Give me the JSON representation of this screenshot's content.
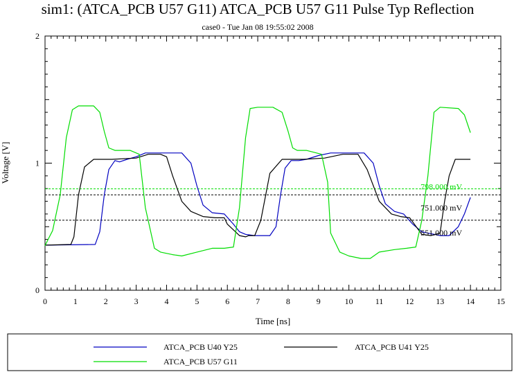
{
  "chart_data": {
    "type": "line",
    "title": "sim1: (ATCA_PCB U57 G11) ATCA_PCB U57 G11 Pulse Typ Reflection",
    "subtitle": "case0 - Tue Jan 08 19:55:02 2008",
    "xlabel": "Time [ns]",
    "ylabel": "Voltage [V]",
    "xlim": [
      0,
      15
    ],
    "ylim": [
      0,
      2
    ],
    "x_ticks": [
      "0",
      "1",
      "2",
      "3",
      "4",
      "5",
      "6",
      "7",
      "8",
      "9",
      "10",
      "11",
      "12",
      "13",
      "14",
      "15"
    ],
    "y_ticks": [
      "0",
      "1",
      "2"
    ],
    "grid": false,
    "legend_position": "bottom",
    "series": [
      {
        "name": "ATCA_PCB U40 Y25",
        "color": "#0000c0",
        "x": [
          0,
          1.65,
          1.8,
          1.95,
          2.1,
          2.3,
          2.45,
          2.7,
          3.0,
          3.3,
          3.6,
          4.0,
          4.5,
          4.8,
          5.0,
          5.2,
          5.5,
          5.9,
          6.2,
          6.4,
          6.6,
          6.9,
          7.4,
          7.6,
          7.75,
          7.9,
          8.1,
          8.35,
          8.6,
          9.0,
          9.4,
          9.6,
          10.0,
          10.5,
          10.8,
          11.0,
          11.2,
          11.5,
          11.8,
          12.1,
          12.4,
          13.0,
          13.3,
          13.6,
          13.8,
          14.0
        ],
        "values": [
          0.355,
          0.36,
          0.46,
          0.75,
          0.95,
          1.02,
          1.01,
          1.03,
          1.05,
          1.08,
          1.08,
          1.08,
          1.08,
          1.0,
          0.82,
          0.67,
          0.61,
          0.6,
          0.52,
          0.46,
          0.44,
          0.43,
          0.43,
          0.5,
          0.75,
          0.96,
          1.02,
          1.02,
          1.03,
          1.06,
          1.08,
          1.08,
          1.08,
          1.08,
          1.0,
          0.82,
          0.68,
          0.62,
          0.6,
          0.52,
          0.46,
          0.43,
          0.43,
          0.5,
          0.6,
          0.73
        ]
      },
      {
        "name": "ATCA_PCB U41 Y25",
        "color": "#000000",
        "x": [
          0,
          0.85,
          0.95,
          1.1,
          1.3,
          1.6,
          2.2,
          3.0,
          3.4,
          3.8,
          4.0,
          4.2,
          4.5,
          4.8,
          5.2,
          5.6,
          5.9,
          6.0,
          6.4,
          6.6,
          6.7,
          6.9,
          7.1,
          7.4,
          7.8,
          8.5,
          9.2,
          9.8,
          10.1,
          10.3,
          10.6,
          11.0,
          11.4,
          11.7,
          12.0,
          12.4,
          12.7,
          13.0,
          13.15,
          13.3,
          13.5,
          14.0
        ],
        "values": [
          0.355,
          0.36,
          0.42,
          0.75,
          0.97,
          1.03,
          1.03,
          1.04,
          1.07,
          1.07,
          1.05,
          0.9,
          0.7,
          0.62,
          0.58,
          0.57,
          0.57,
          0.52,
          0.43,
          0.42,
          0.43,
          0.43,
          0.55,
          0.92,
          1.03,
          1.03,
          1.04,
          1.07,
          1.07,
          1.07,
          0.95,
          0.7,
          0.6,
          0.58,
          0.57,
          0.44,
          0.43,
          0.45,
          0.7,
          0.9,
          1.03,
          1.03
        ]
      },
      {
        "name": "ATCA_PCB U57 G11",
        "color": "#00dd00",
        "x": [
          0,
          0.1,
          0.25,
          0.5,
          0.7,
          0.9,
          1.1,
          1.3,
          1.6,
          1.8,
          1.95,
          2.1,
          2.3,
          2.8,
          3.1,
          3.3,
          3.6,
          3.8,
          4.2,
          4.5,
          5.0,
          5.5,
          5.9,
          6.2,
          6.4,
          6.6,
          6.75,
          7.0,
          7.5,
          7.8,
          8.0,
          8.15,
          8.3,
          8.6,
          9.1,
          9.3,
          9.4,
          9.7,
          10.0,
          10.4,
          10.7,
          11.0,
          11.5,
          11.9,
          12.2,
          12.4,
          12.6,
          12.8,
          13.0,
          13.6,
          13.8,
          14.0
        ],
        "values": [
          0.35,
          0.4,
          0.47,
          0.75,
          1.2,
          1.42,
          1.45,
          1.45,
          1.45,
          1.4,
          1.25,
          1.12,
          1.1,
          1.1,
          1.07,
          0.65,
          0.33,
          0.3,
          0.28,
          0.27,
          0.3,
          0.33,
          0.33,
          0.34,
          0.65,
          1.2,
          1.43,
          1.44,
          1.44,
          1.4,
          1.25,
          1.12,
          1.1,
          1.1,
          1.07,
          0.85,
          0.45,
          0.3,
          0.27,
          0.25,
          0.25,
          0.3,
          0.32,
          0.33,
          0.34,
          0.55,
          0.9,
          1.4,
          1.44,
          1.43,
          1.38,
          1.24
        ]
      }
    ],
    "reference_lines": [
      {
        "value": 0.798,
        "label": "798.000 mV",
        "color": "#00dd00"
      },
      {
        "value": 0.751,
        "label": "751.000 mV",
        "color": "#000000"
      },
      {
        "value": 0.551,
        "label": "551.000 mV",
        "color": "#000000"
      }
    ]
  }
}
